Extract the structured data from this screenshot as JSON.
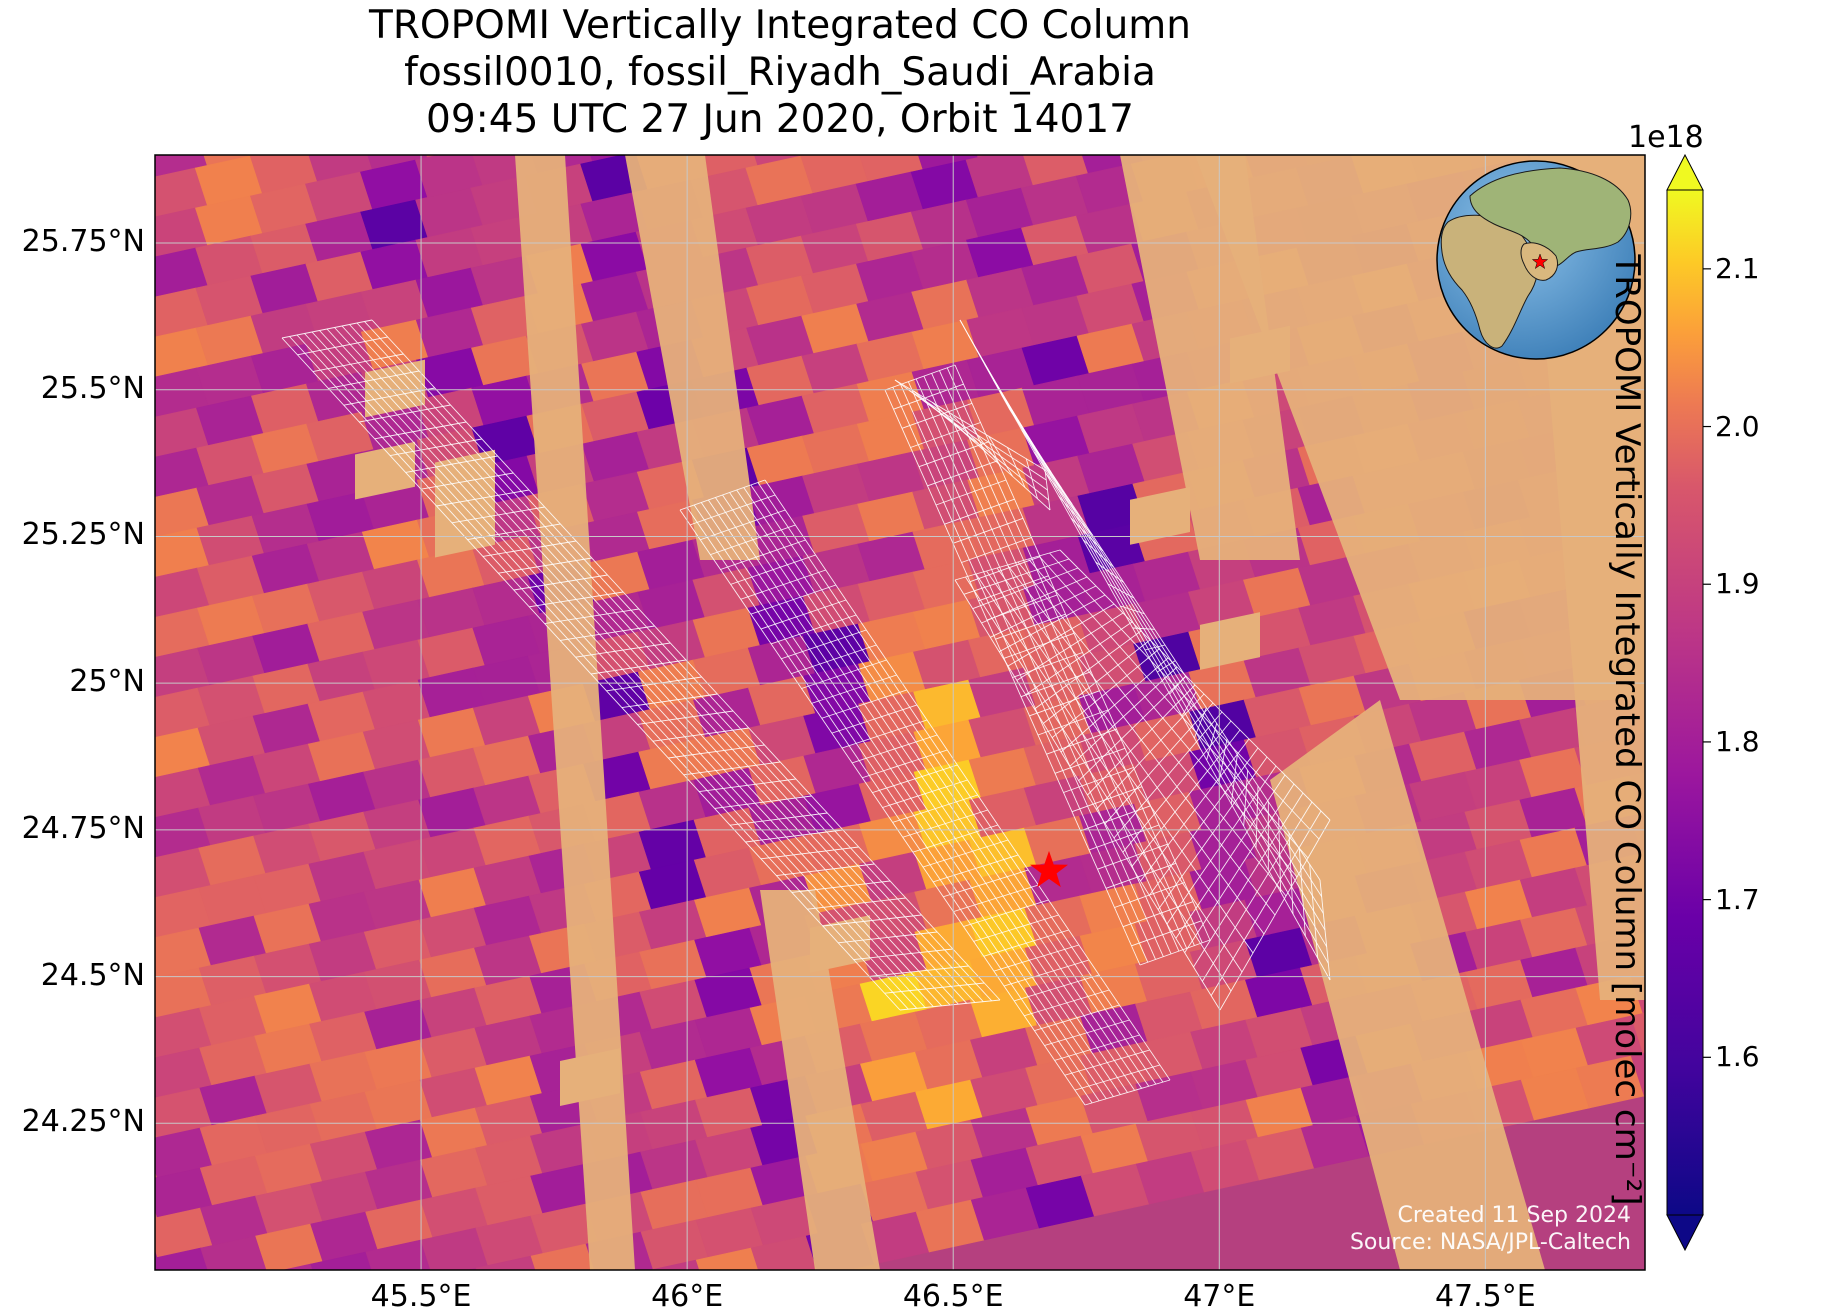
{
  "title": {
    "line1": "TROPOMI Vertically Integrated CO Column",
    "line2": "fossil0010, fossil_Riyadh_Saudi_Arabia",
    "line3": "09:45 UTC 27 Jun 2020, Orbit 14017"
  },
  "map": {
    "lon_range": [
      45.0,
      47.8
    ],
    "lat_range": [
      24.0,
      25.9
    ],
    "lat_ticks": [
      {
        "value": 25.75,
        "label": "25.75°N"
      },
      {
        "value": 25.5,
        "label": "25.5°N"
      },
      {
        "value": 25.25,
        "label": "25.25°N"
      },
      {
        "value": 25.0,
        "label": "25°N"
      },
      {
        "value": 24.75,
        "label": "24.75°N"
      },
      {
        "value": 24.5,
        "label": "24.5°N"
      },
      {
        "value": 24.25,
        "label": "24.25°N"
      }
    ],
    "lon_ticks": [
      {
        "value": 45.5,
        "label": "45.5°E"
      },
      {
        "value": 46.0,
        "label": "46°E"
      },
      {
        "value": 46.5,
        "label": "46.5°E"
      },
      {
        "value": 47.0,
        "label": "47°E"
      },
      {
        "value": 47.5,
        "label": "47.5°E"
      }
    ],
    "marker": {
      "lon": 46.68,
      "lat": 24.68,
      "symbol": "star",
      "color": "#ff0000"
    },
    "gridline_color": "#c8c8c8"
  },
  "colorbar": {
    "label": "TROPOMI Vertically Integrated CO Column [molec cm⁻²]",
    "offset": "1e18",
    "min": 1.5,
    "max": 2.15,
    "colormap": "plasma",
    "ticks": [
      {
        "value": 1.6,
        "label": "1.6"
      },
      {
        "value": 1.7,
        "label": "1.7"
      },
      {
        "value": 1.8,
        "label": "1.8"
      },
      {
        "value": 1.9,
        "label": "1.9"
      },
      {
        "value": 2.0,
        "label": "2.0"
      },
      {
        "value": 2.1,
        "label": "2.1"
      }
    ]
  },
  "credits": {
    "created": "Created 11 Sep 2024",
    "source": "Source: NASA/JPL-Caltech"
  },
  "colors": {
    "desert": "#e6b07a",
    "ocean": "#5b9ad0",
    "land_green": "#8fae6a",
    "overpass_grid": "#ffffff"
  }
}
